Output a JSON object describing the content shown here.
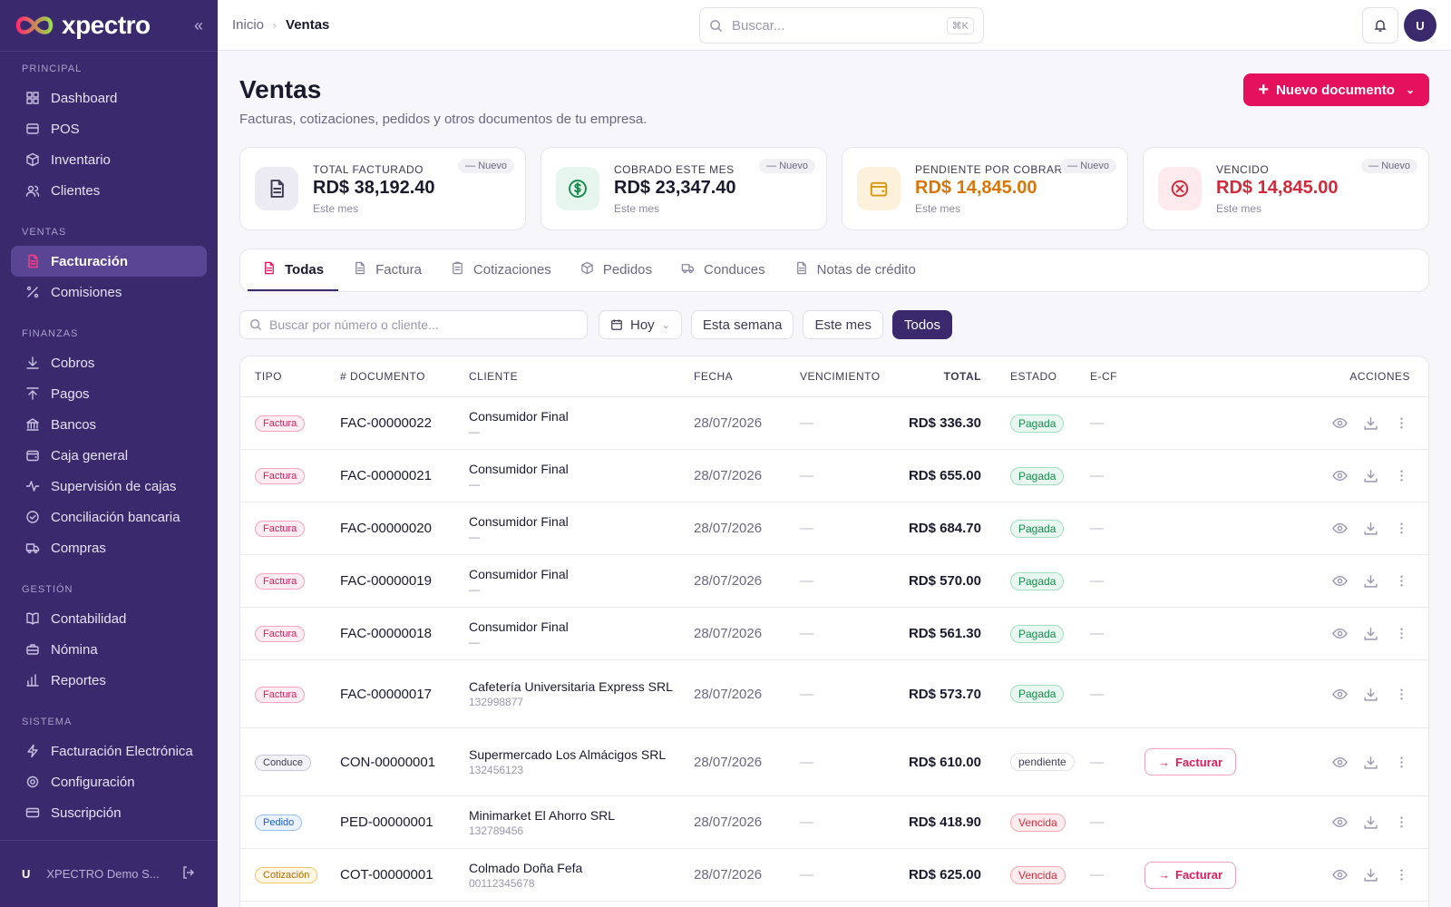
{
  "sidebar": {
    "brand": "xpectro",
    "sections": [
      {
        "title": "PRINCIPAL",
        "items": [
          {
            "label": "Dashboard",
            "icon": "dashboard-icon"
          },
          {
            "label": "POS",
            "icon": "pos-icon"
          },
          {
            "label": "Inventario",
            "icon": "box-icon"
          },
          {
            "label": "Clientes",
            "icon": "users-icon"
          }
        ]
      },
      {
        "title": "VENTAS",
        "items": [
          {
            "label": "Facturación",
            "icon": "invoice-icon",
            "active": true
          },
          {
            "label": "Comisiones",
            "icon": "percent-icon"
          }
        ]
      },
      {
        "title": "FINANZAS",
        "items": [
          {
            "label": "Cobros",
            "icon": "arrow-down-icon"
          },
          {
            "label": "Pagos",
            "icon": "arrow-up-icon"
          },
          {
            "label": "Bancos",
            "icon": "bank-icon"
          },
          {
            "label": "Caja general",
            "icon": "wallet-icon"
          },
          {
            "label": "Supervisión de cajas",
            "icon": "activity-icon"
          },
          {
            "label": "Conciliación bancaria",
            "icon": "check-circle-icon"
          },
          {
            "label": "Compras",
            "icon": "truck-icon"
          }
        ]
      },
      {
        "title": "GESTIÓN",
        "items": [
          {
            "label": "Contabilidad",
            "icon": "book-icon"
          },
          {
            "label": "Nómina",
            "icon": "briefcase-icon"
          },
          {
            "label": "Reportes",
            "icon": "bar-chart-icon"
          }
        ]
      },
      {
        "title": "SISTEMA",
        "items": [
          {
            "label": "Facturación Electrónica",
            "icon": "bolt-icon"
          },
          {
            "label": "Configuración",
            "icon": "gear-icon"
          },
          {
            "label": "Suscripción",
            "icon": "card-icon"
          }
        ]
      }
    ],
    "user": {
      "initial": "U",
      "name": "XPECTRO Demo S..."
    }
  },
  "topbar": {
    "breadcrumb": [
      "Inicio",
      "Ventas"
    ],
    "search_placeholder": "Buscar...",
    "search_shortcut": "⌘K",
    "avatar": "U"
  },
  "page": {
    "title": "Ventas",
    "subtitle": "Facturas, cotizaciones, pedidos y otros documentos de tu empresa.",
    "new_button": "Nuevo documento"
  },
  "cards": [
    {
      "label": "TOTAL FACTURADO",
      "value": "RD$ 38,192.40",
      "note": "Este mes",
      "badge": "— Nuevo",
      "color": "#1a1a2e",
      "icon": "document-icon",
      "bg": "#eceaf2",
      "fg": "#3d3a52"
    },
    {
      "label": "COBRADO ESTE MES",
      "value": "RD$ 23,347.40",
      "note": "Este mes",
      "badge": "— Nuevo",
      "color": "#1a1a2e",
      "icon": "dollar-icon",
      "bg": "#e6f6ee",
      "fg": "#168a4c"
    },
    {
      "label": "PENDIENTE POR COBRAR",
      "value": "RD$ 14,845.00",
      "note": "Este mes",
      "badge": "— Nuevo",
      "color": "#d9760a",
      "icon": "wallet-icon",
      "bg": "#fdf1dc",
      "fg": "#d9960a"
    },
    {
      "label": "VENCIDO",
      "value": "RD$ 14,845.00",
      "note": "Este mes",
      "badge": "— Nuevo",
      "color": "#d02b3c",
      "icon": "x-circle-icon",
      "bg": "#fdeaec",
      "fg": "#d02b3c"
    }
  ],
  "tabs": [
    "Todas",
    "Factura",
    "Cotizaciones",
    "Pedidos",
    "Conduces",
    "Notas de crédito"
  ],
  "filters": {
    "search_placeholder": "Buscar por número o cliente...",
    "date_select": "Hoy",
    "buttons": [
      "Esta semana",
      "Este mes",
      "Todos"
    ],
    "active": "Todos"
  },
  "table": {
    "headers": [
      "TIPO",
      "# DOCUMENTO",
      "CLIENTE",
      "FECHA",
      "VENCIMIENTO",
      "TOTAL",
      "ESTADO",
      "E-CF",
      "ACCIONES"
    ],
    "rows": [
      {
        "tipo": "Factura",
        "doc": "FAC-00000022",
        "cliente": "Consumidor Final",
        "sub": "—",
        "fecha": "28/07/2026",
        "venc": "—",
        "total": "RD$ 336.30",
        "estado": "Pagada",
        "ecf": "—",
        "facturar": ""
      },
      {
        "tipo": "Factura",
        "doc": "FAC-00000021",
        "cliente": "Consumidor Final",
        "sub": "—",
        "fecha": "28/07/2026",
        "venc": "—",
        "total": "RD$ 655.00",
        "estado": "Pagada",
        "ecf": "—",
        "facturar": ""
      },
      {
        "tipo": "Factura",
        "doc": "FAC-00000020",
        "cliente": "Consumidor Final",
        "sub": "—",
        "fecha": "28/07/2026",
        "venc": "—",
        "total": "RD$ 684.70",
        "estado": "Pagada",
        "ecf": "—",
        "facturar": ""
      },
      {
        "tipo": "Factura",
        "doc": "FAC-00000019",
        "cliente": "Consumidor Final",
        "sub": "—",
        "fecha": "28/07/2026",
        "venc": "—",
        "total": "RD$ 570.00",
        "estado": "Pagada",
        "ecf": "—",
        "facturar": ""
      },
      {
        "tipo": "Factura",
        "doc": "FAC-00000018",
        "cliente": "Consumidor Final",
        "sub": "—",
        "fecha": "28/07/2026",
        "venc": "—",
        "total": "RD$ 561.30",
        "estado": "Pagada",
        "ecf": "—",
        "facturar": ""
      },
      {
        "tipo": "Factura",
        "doc": "FAC-00000017",
        "cliente": "Cafetería Universitaria Express SRL",
        "sub": "132998877",
        "fecha": "28/07/2026",
        "venc": "—",
        "total": "RD$ 573.70",
        "estado": "Pagada",
        "ecf": "—",
        "facturar": ""
      },
      {
        "tipo": "Conduce",
        "doc": "CON-00000001",
        "cliente": "Supermercado Los Almácigos SRL",
        "sub": "132456123",
        "fecha": "28/07/2026",
        "venc": "—",
        "total": "RD$ 610.00",
        "estado": "pendiente",
        "ecf": "—",
        "facturar": "Facturar"
      },
      {
        "tipo": "Pedido",
        "doc": "PED-00000001",
        "cliente": "Minimarket El Ahorro SRL",
        "sub": "132789456",
        "fecha": "28/07/2026",
        "venc": "—",
        "total": "RD$ 418.90",
        "estado": "Vencida",
        "ecf": "—",
        "facturar": ""
      },
      {
        "tipo": "Cotización",
        "doc": "COT-00000001",
        "cliente": "Colmado Doña Fefa",
        "sub": "00112345678",
        "fecha": "28/07/2026",
        "venc": "—",
        "total": "RD$ 625.00",
        "estado": "Vencida",
        "ecf": "—",
        "facturar": "Facturar"
      }
    ]
  },
  "colors": {
    "brand": "#3a2a6d",
    "accent": "#e6115d"
  }
}
